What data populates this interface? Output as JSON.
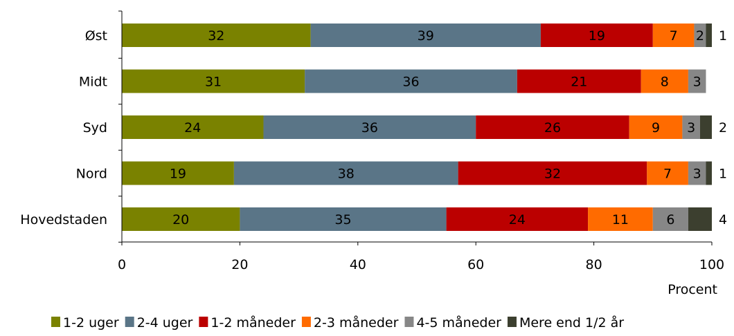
{
  "chart_data": {
    "type": "bar",
    "orientation": "horizontal",
    "stacked": true,
    "title": "",
    "xlabel": "Procent",
    "ylabel": "",
    "xlim": [
      0,
      100
    ],
    "x_ticks": [
      0,
      20,
      40,
      60,
      80,
      100
    ],
    "grid": false,
    "legend_position": "bottom",
    "categories": [
      "Øst",
      "Midt",
      "Syd",
      "Nord",
      "Hovedstaden"
    ],
    "series": [
      {
        "name": "1-2 uger",
        "color": "#7a8200",
        "values": [
          32,
          31,
          24,
          19,
          20
        ],
        "labels": [
          "32",
          "31",
          "24",
          "19",
          "20"
        ]
      },
      {
        "name": "2-4 uger",
        "color": "#5a7587",
        "values": [
          39,
          36,
          36,
          38,
          35
        ],
        "labels": [
          "39",
          "36",
          "36",
          "38",
          "35"
        ]
      },
      {
        "name": "1-2 måneder",
        "color": "#bb0000",
        "values": [
          19,
          21,
          26,
          32,
          24
        ],
        "labels": [
          "19",
          "21",
          "26",
          "32",
          "24"
        ]
      },
      {
        "name": "2-3 måneder",
        "color": "#ff6b00",
        "values": [
          7,
          8,
          9,
          7,
          11
        ],
        "labels": [
          "7",
          "8",
          "9",
          "7",
          "11"
        ]
      },
      {
        "name": "4-5 måneder",
        "color": "#878787",
        "values": [
          2,
          3,
          3,
          3,
          6
        ],
        "labels": [
          "2",
          "3",
          "3",
          "3",
          "6"
        ]
      },
      {
        "name": "Mere end 1/2 år",
        "color": "#3c3f2f",
        "values": [
          1,
          0,
          2,
          1,
          4
        ],
        "labels": [
          "1",
          "",
          "2",
          "1",
          "4"
        ]
      }
    ]
  }
}
